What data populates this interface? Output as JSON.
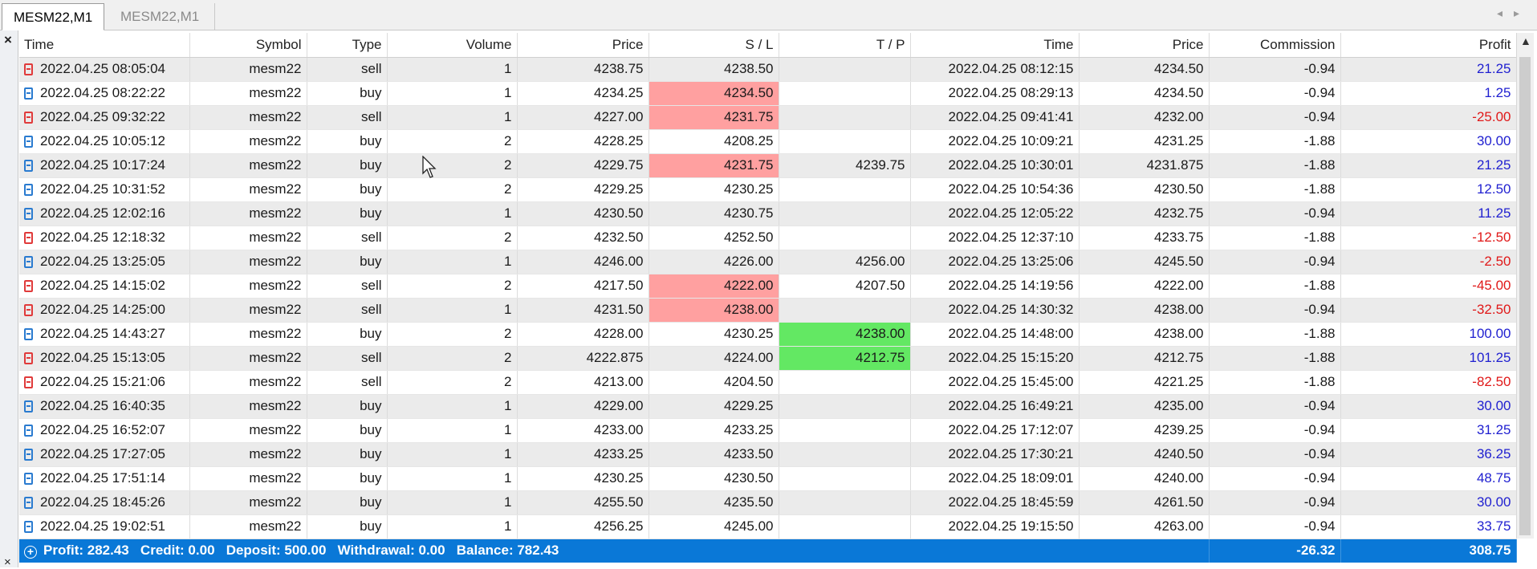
{
  "tabs": [
    {
      "label": "MESM22,M1",
      "active": true
    },
    {
      "label": "MESM22,M1",
      "active": false
    }
  ],
  "columns": [
    "Time",
    "Symbol",
    "Type",
    "Volume",
    "Price",
    "S / L",
    "T / P",
    "Time",
    "Price",
    "Commission",
    "Profit"
  ],
  "rows": [
    {
      "open_time": "2022.04.25 08:05:04",
      "symbol": "mesm22",
      "type": "sell",
      "volume": "1",
      "open_price": "4238.75",
      "sl": "4238.50",
      "tp": "",
      "close_time": "2022.04.25 08:12:15",
      "close_price": "4234.50",
      "commission": "-0.94",
      "profit": "21.25",
      "sl_hit": false,
      "tp_hit": false
    },
    {
      "open_time": "2022.04.25 08:22:22",
      "symbol": "mesm22",
      "type": "buy",
      "volume": "1",
      "open_price": "4234.25",
      "sl": "4234.50",
      "tp": "",
      "close_time": "2022.04.25 08:29:13",
      "close_price": "4234.50",
      "commission": "-0.94",
      "profit": "1.25",
      "sl_hit": true,
      "tp_hit": false
    },
    {
      "open_time": "2022.04.25 09:32:22",
      "symbol": "mesm22",
      "type": "sell",
      "volume": "1",
      "open_price": "4227.00",
      "sl": "4231.75",
      "tp": "",
      "close_time": "2022.04.25 09:41:41",
      "close_price": "4232.00",
      "commission": "-0.94",
      "profit": "-25.00",
      "sl_hit": true,
      "tp_hit": false
    },
    {
      "open_time": "2022.04.25 10:05:12",
      "symbol": "mesm22",
      "type": "buy",
      "volume": "2",
      "open_price": "4228.25",
      "sl": "4208.25",
      "tp": "",
      "close_time": "2022.04.25 10:09:21",
      "close_price": "4231.25",
      "commission": "-1.88",
      "profit": "30.00",
      "sl_hit": false,
      "tp_hit": false
    },
    {
      "open_time": "2022.04.25 10:17:24",
      "symbol": "mesm22",
      "type": "buy",
      "volume": "2",
      "open_price": "4229.75",
      "sl": "4231.75",
      "tp": "4239.75",
      "close_time": "2022.04.25 10:30:01",
      "close_price": "4231.875",
      "commission": "-1.88",
      "profit": "21.25",
      "sl_hit": true,
      "tp_hit": false
    },
    {
      "open_time": "2022.04.25 10:31:52",
      "symbol": "mesm22",
      "type": "buy",
      "volume": "2",
      "open_price": "4229.25",
      "sl": "4230.25",
      "tp": "",
      "close_time": "2022.04.25 10:54:36",
      "close_price": "4230.50",
      "commission": "-1.88",
      "profit": "12.50",
      "sl_hit": false,
      "tp_hit": false
    },
    {
      "open_time": "2022.04.25 12:02:16",
      "symbol": "mesm22",
      "type": "buy",
      "volume": "1",
      "open_price": "4230.50",
      "sl": "4230.75",
      "tp": "",
      "close_time": "2022.04.25 12:05:22",
      "close_price": "4232.75",
      "commission": "-0.94",
      "profit": "11.25",
      "sl_hit": false,
      "tp_hit": false
    },
    {
      "open_time": "2022.04.25 12:18:32",
      "symbol": "mesm22",
      "type": "sell",
      "volume": "2",
      "open_price": "4232.50",
      "sl": "4252.50",
      "tp": "",
      "close_time": "2022.04.25 12:37:10",
      "close_price": "4233.75",
      "commission": "-1.88",
      "profit": "-12.50",
      "sl_hit": false,
      "tp_hit": false
    },
    {
      "open_time": "2022.04.25 13:25:05",
      "symbol": "mesm22",
      "type": "buy",
      "volume": "1",
      "open_price": "4246.00",
      "sl": "4226.00",
      "tp": "4256.00",
      "close_time": "2022.04.25 13:25:06",
      "close_price": "4245.50",
      "commission": "-0.94",
      "profit": "-2.50",
      "sl_hit": false,
      "tp_hit": false
    },
    {
      "open_time": "2022.04.25 14:15:02",
      "symbol": "mesm22",
      "type": "sell",
      "volume": "2",
      "open_price": "4217.50",
      "sl": "4222.00",
      "tp": "4207.50",
      "close_time": "2022.04.25 14:19:56",
      "close_price": "4222.00",
      "commission": "-1.88",
      "profit": "-45.00",
      "sl_hit": true,
      "tp_hit": false
    },
    {
      "open_time": "2022.04.25 14:25:00",
      "symbol": "mesm22",
      "type": "sell",
      "volume": "1",
      "open_price": "4231.50",
      "sl": "4238.00",
      "tp": "",
      "close_time": "2022.04.25 14:30:32",
      "close_price": "4238.00",
      "commission": "-0.94",
      "profit": "-32.50",
      "sl_hit": true,
      "tp_hit": false
    },
    {
      "open_time": "2022.04.25 14:43:27",
      "symbol": "mesm22",
      "type": "buy",
      "volume": "2",
      "open_price": "4228.00",
      "sl": "4230.25",
      "tp": "4238.00",
      "close_time": "2022.04.25 14:48:00",
      "close_price": "4238.00",
      "commission": "-1.88",
      "profit": "100.00",
      "sl_hit": false,
      "tp_hit": true
    },
    {
      "open_time": "2022.04.25 15:13:05",
      "symbol": "mesm22",
      "type": "sell",
      "volume": "2",
      "open_price": "4222.875",
      "sl": "4224.00",
      "tp": "4212.75",
      "close_time": "2022.04.25 15:15:20",
      "close_price": "4212.75",
      "commission": "-1.88",
      "profit": "101.25",
      "sl_hit": false,
      "tp_hit": true
    },
    {
      "open_time": "2022.04.25 15:21:06",
      "symbol": "mesm22",
      "type": "sell",
      "volume": "2",
      "open_price": "4213.00",
      "sl": "4204.50",
      "tp": "",
      "close_time": "2022.04.25 15:45:00",
      "close_price": "4221.25",
      "commission": "-1.88",
      "profit": "-82.50",
      "sl_hit": false,
      "tp_hit": false
    },
    {
      "open_time": "2022.04.25 16:40:35",
      "symbol": "mesm22",
      "type": "buy",
      "volume": "1",
      "open_price": "4229.00",
      "sl": "4229.25",
      "tp": "",
      "close_time": "2022.04.25 16:49:21",
      "close_price": "4235.00",
      "commission": "-0.94",
      "profit": "30.00",
      "sl_hit": false,
      "tp_hit": false
    },
    {
      "open_time": "2022.04.25 16:52:07",
      "symbol": "mesm22",
      "type": "buy",
      "volume": "1",
      "open_price": "4233.00",
      "sl": "4233.25",
      "tp": "",
      "close_time": "2022.04.25 17:12:07",
      "close_price": "4239.25",
      "commission": "-0.94",
      "profit": "31.25",
      "sl_hit": false,
      "tp_hit": false
    },
    {
      "open_time": "2022.04.25 17:27:05",
      "symbol": "mesm22",
      "type": "buy",
      "volume": "1",
      "open_price": "4233.25",
      "sl": "4233.50",
      "tp": "",
      "close_time": "2022.04.25 17:30:21",
      "close_price": "4240.50",
      "commission": "-0.94",
      "profit": "36.25",
      "sl_hit": false,
      "tp_hit": false
    },
    {
      "open_time": "2022.04.25 17:51:14",
      "symbol": "mesm22",
      "type": "buy",
      "volume": "1",
      "open_price": "4230.25",
      "sl": "4230.50",
      "tp": "",
      "close_time": "2022.04.25 18:09:01",
      "close_price": "4240.00",
      "commission": "-0.94",
      "profit": "48.75",
      "sl_hit": false,
      "tp_hit": false
    },
    {
      "open_time": "2022.04.25 18:45:26",
      "symbol": "mesm22",
      "type": "buy",
      "volume": "1",
      "open_price": "4255.50",
      "sl": "4235.50",
      "tp": "",
      "close_time": "2022.04.25 18:45:59",
      "close_price": "4261.50",
      "commission": "-0.94",
      "profit": "30.00",
      "sl_hit": false,
      "tp_hit": false
    },
    {
      "open_time": "2022.04.25 19:02:51",
      "symbol": "mesm22",
      "type": "buy",
      "volume": "1",
      "open_price": "4256.25",
      "sl": "4245.00",
      "tp": "",
      "close_time": "2022.04.25 19:15:50",
      "close_price": "4263.00",
      "commission": "-0.94",
      "profit": "33.75",
      "sl_hit": false,
      "tp_hit": false
    }
  ],
  "summary": {
    "text": "Profit: 282.43   Credit: 0.00   Deposit: 500.00   Withdrawal: 0.00   Balance: 782.43",
    "commission": "-26.32",
    "profit": "308.75"
  },
  "colors": {
    "sl_highlight": "#ffa0a0",
    "tp_highlight": "#63e863",
    "profit_positive": "#1f1fd0",
    "profit_negative": "#e01818",
    "summary_bar": "#0a78d7"
  },
  "icons": {
    "close": "close-icon",
    "buy_row": "buy-order-icon",
    "sell_row": "sell-order-icon",
    "expand": "expand-plus-icon",
    "scroll_up": "scroll-up-icon"
  }
}
